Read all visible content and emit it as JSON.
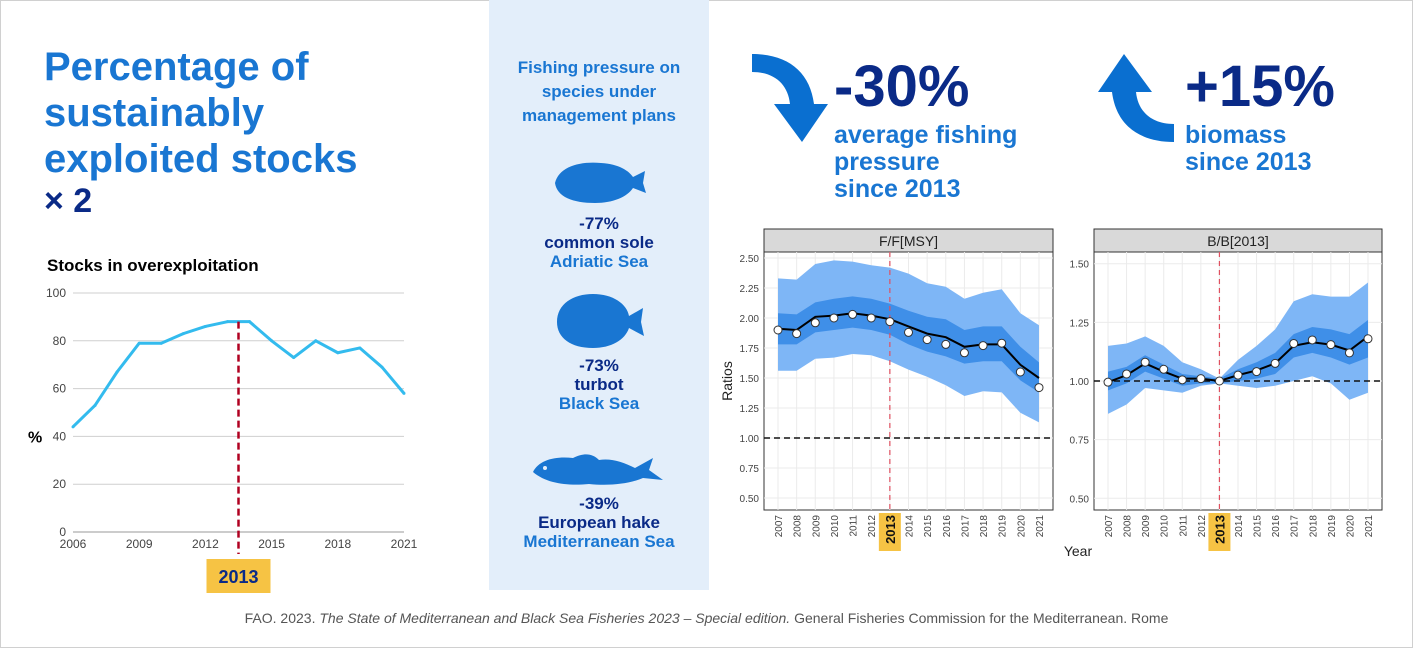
{
  "headline": {
    "title": "Percentage of sustainably exploited stocks",
    "multiplier": "× 2"
  },
  "overexploitation": {
    "subtitle": "Stocks in overexploitation",
    "ylabel": "%",
    "marker_label": "2013"
  },
  "management": {
    "title": "Fishing pressure on species under management plans",
    "species": [
      {
        "pct": "-77%",
        "name": "common sole",
        "sea": "Adriatic Sea",
        "icon": "sole-fish-icon"
      },
      {
        "pct": "-73%",
        "name": "turbot",
        "sea": "Black Sea",
        "icon": "turbot-fish-icon"
      },
      {
        "pct": "-39%",
        "name": "European hake",
        "sea": "Mediterranean Sea",
        "icon": "hake-fish-icon"
      }
    ]
  },
  "stats": {
    "pressure": {
      "value": "-30%",
      "line1": "average fishing",
      "line2": "pressure",
      "line3": "since 2013",
      "icon": "arrow-down-icon"
    },
    "biomass": {
      "value": "+15%",
      "line1": "biomass",
      "line2": "since 2013",
      "icon": "arrow-up-icon"
    }
  },
  "panels": {
    "ylabel": "Ratios",
    "xlabel": "Year",
    "marker_label": "2013"
  },
  "footer": {
    "pre": "FAO. 2023. ",
    "title": "The State of Mediterranean and Black Sea Fisheries 2023 – Special edition.",
    "post": " General Fisheries Commission for the Mediterranean. Rome"
  },
  "colors": {
    "blue_title": "#1976d2",
    "navy": "#0a2a87",
    "line_light_blue": "#33bbee",
    "band_outer": "#7eb6f6",
    "band_inner": "#3f8fe8",
    "marker_red": "#b00020",
    "highlight_yellow": "#f6c344"
  },
  "chart_data": [
    {
      "type": "line",
      "title": "Stocks in overexploitation",
      "ylabel": "%",
      "xticks": [
        "2006",
        "2009",
        "2012",
        "2015",
        "2018",
        "2021"
      ],
      "yticks": [
        0,
        20,
        40,
        60,
        80,
        100
      ],
      "ylim": [
        0,
        100
      ],
      "xlim": [
        2006,
        2021
      ],
      "x": [
        2006,
        2007,
        2008,
        2009,
        2010,
        2011,
        2012,
        2013,
        2014,
        2015,
        2016,
        2017,
        2018,
        2019,
        2020,
        2021
      ],
      "values": [
        44,
        53,
        67,
        79,
        79,
        83,
        86,
        88,
        88,
        80,
        73,
        80,
        75,
        77,
        69,
        58
      ],
      "marker": 2013.5,
      "grid": true
    },
    {
      "type": "line",
      "title": "F/F[MSY]",
      "ylabel": "Ratios",
      "xlabel": "Year",
      "x": [
        2007,
        2008,
        2009,
        2010,
        2011,
        2012,
        2013,
        2014,
        2015,
        2016,
        2017,
        2018,
        2019,
        2020,
        2021
      ],
      "values": [
        1.9,
        1.87,
        1.96,
        2.0,
        2.03,
        2.0,
        1.97,
        1.88,
        1.82,
        1.78,
        1.71,
        1.77,
        1.79,
        1.55,
        1.42
      ],
      "line": [
        1.91,
        1.9,
        2.01,
        2.02,
        2.04,
        2.02,
        1.99,
        1.93,
        1.87,
        1.84,
        1.76,
        1.78,
        1.78,
        1.61,
        1.5
      ],
      "band_inner_low": [
        1.78,
        1.78,
        1.88,
        1.9,
        1.92,
        1.9,
        1.86,
        1.78,
        1.72,
        1.68,
        1.62,
        1.64,
        1.64,
        1.48,
        1.38
      ],
      "band_inner_high": [
        2.04,
        2.03,
        2.13,
        2.16,
        2.18,
        2.16,
        2.12,
        2.06,
        2.01,
        1.99,
        1.9,
        1.93,
        1.93,
        1.76,
        1.63
      ],
      "band_outer_low": [
        1.56,
        1.56,
        1.66,
        1.67,
        1.7,
        1.69,
        1.64,
        1.57,
        1.51,
        1.44,
        1.35,
        1.39,
        1.38,
        1.21,
        1.13
      ],
      "band_outer_high": [
        2.33,
        2.32,
        2.45,
        2.48,
        2.47,
        2.44,
        2.42,
        2.37,
        2.29,
        2.26,
        2.16,
        2.21,
        2.24,
        2.04,
        1.94
      ],
      "reference": 1.0,
      "yticks": [
        "0.50",
        "0.75",
        "1.00",
        "1.25",
        "1.50",
        "1.75",
        "2.00",
        "2.25",
        "2.50"
      ],
      "ylim": [
        0.4,
        2.55
      ],
      "marker": 2013
    },
    {
      "type": "line",
      "title": "B/B[2013]",
      "x": [
        2007,
        2008,
        2009,
        2010,
        2011,
        2012,
        2013,
        2014,
        2015,
        2016,
        2017,
        2018,
        2019,
        2020,
        2021
      ],
      "values": [
        0.995,
        1.03,
        1.08,
        1.05,
        1.005,
        1.01,
        1.0,
        1.025,
        1.04,
        1.075,
        1.16,
        1.175,
        1.155,
        1.12,
        1.18
      ],
      "line": [
        0.995,
        1.025,
        1.075,
        1.04,
        1.01,
        1.01,
        1.0,
        1.025,
        1.045,
        1.075,
        1.15,
        1.165,
        1.155,
        1.13,
        1.19
      ],
      "band_inner_low": [
        0.96,
        0.99,
        1.04,
        1.01,
        0.98,
        0.99,
        0.99,
        1.0,
        1.01,
        1.03,
        1.1,
        1.12,
        1.1,
        1.07,
        1.1
      ],
      "band_inner_high": [
        1.04,
        1.06,
        1.11,
        1.07,
        1.03,
        1.02,
        1.01,
        1.05,
        1.08,
        1.12,
        1.2,
        1.23,
        1.22,
        1.2,
        1.26
      ],
      "band_outer_low": [
        0.86,
        0.9,
        0.97,
        0.96,
        0.95,
        0.98,
        0.99,
        0.98,
        0.97,
        0.98,
        1.0,
        1.02,
        0.99,
        0.92,
        0.95
      ],
      "band_outer_high": [
        1.15,
        1.16,
        1.19,
        1.15,
        1.08,
        1.05,
        1.01,
        1.09,
        1.15,
        1.22,
        1.34,
        1.37,
        1.36,
        1.36,
        1.42
      ],
      "reference": 1.0,
      "yticks": [
        "0.50",
        "0.75",
        "1.00",
        "1.25",
        "1.50"
      ],
      "ylim": [
        0.45,
        1.55
      ],
      "marker": 2013
    }
  ]
}
